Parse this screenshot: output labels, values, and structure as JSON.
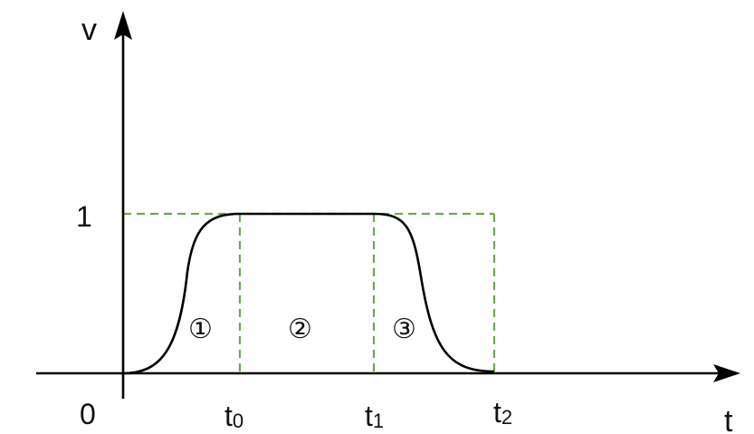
{
  "diagram": {
    "axis_y_label": "v",
    "axis_x_label": "t",
    "origin_label": "0",
    "y_level_label": "1",
    "time_marks": [
      {
        "base": "t",
        "sub": "0"
      },
      {
        "base": "t",
        "sub": "1"
      },
      {
        "base": "t",
        "sub": "2"
      }
    ],
    "regions": [
      "①",
      "②",
      "③"
    ],
    "colors": {
      "curve": "#000000",
      "axes": "#000000",
      "guides": "#6aaa52"
    }
  }
}
